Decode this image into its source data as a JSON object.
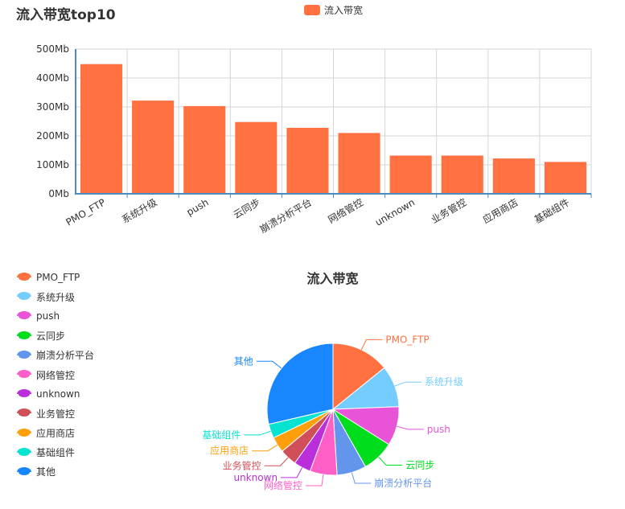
{
  "bar_panel": {
    "title": "流入带宽top10",
    "legend_label": "流入带宽",
    "accent_color": "#ff7140"
  },
  "pie_panel": {
    "title": "流入带宽"
  },
  "chart_data": [
    {
      "type": "bar",
      "title": "流入带宽top10",
      "categories": [
        "PMO_FTP",
        "系统升级",
        "push",
        "云同步",
        "崩溃分析平台",
        "网络管控",
        "unknown",
        "业务管控",
        "应用商店",
        "基础组件"
      ],
      "series": [
        {
          "name": "流入带宽",
          "values": [
            448,
            322,
            303,
            248,
            228,
            210,
            132,
            132,
            122,
            110
          ],
          "color": "#ff7140"
        }
      ],
      "yticks": [
        "0Mb",
        "100Mb",
        "200Mb",
        "300Mb",
        "400Mb",
        "500Mb"
      ],
      "ylim": [
        0,
        500
      ],
      "grid": true,
      "legend": "top-center"
    },
    {
      "type": "pie",
      "title": "流入带宽",
      "legend": "left",
      "slices": [
        {
          "label": "PMO_FTP",
          "value": 448,
          "color": "#ff7140"
        },
        {
          "label": "系统升级",
          "value": 322,
          "color": "#75ccff"
        },
        {
          "label": "push",
          "value": 303,
          "color": "#e953d8"
        },
        {
          "label": "云同步",
          "value": 248,
          "color": "#00dd1d"
        },
        {
          "label": "崩溃分析平台",
          "value": 228,
          "color": "#6495ed"
        },
        {
          "label": "网络管控",
          "value": 210,
          "color": "#ff5fc7"
        },
        {
          "label": "unknown",
          "value": 132,
          "color": "#ba2edb"
        },
        {
          "label": "业务管控",
          "value": 132,
          "color": "#d14f59"
        },
        {
          "label": "应用商店",
          "value": 122,
          "color": "#ff9f0b"
        },
        {
          "label": "基础组件",
          "value": 110,
          "color": "#06e3d1"
        },
        {
          "label": "其他",
          "value": 905,
          "color": "#1887ff"
        }
      ]
    }
  ]
}
